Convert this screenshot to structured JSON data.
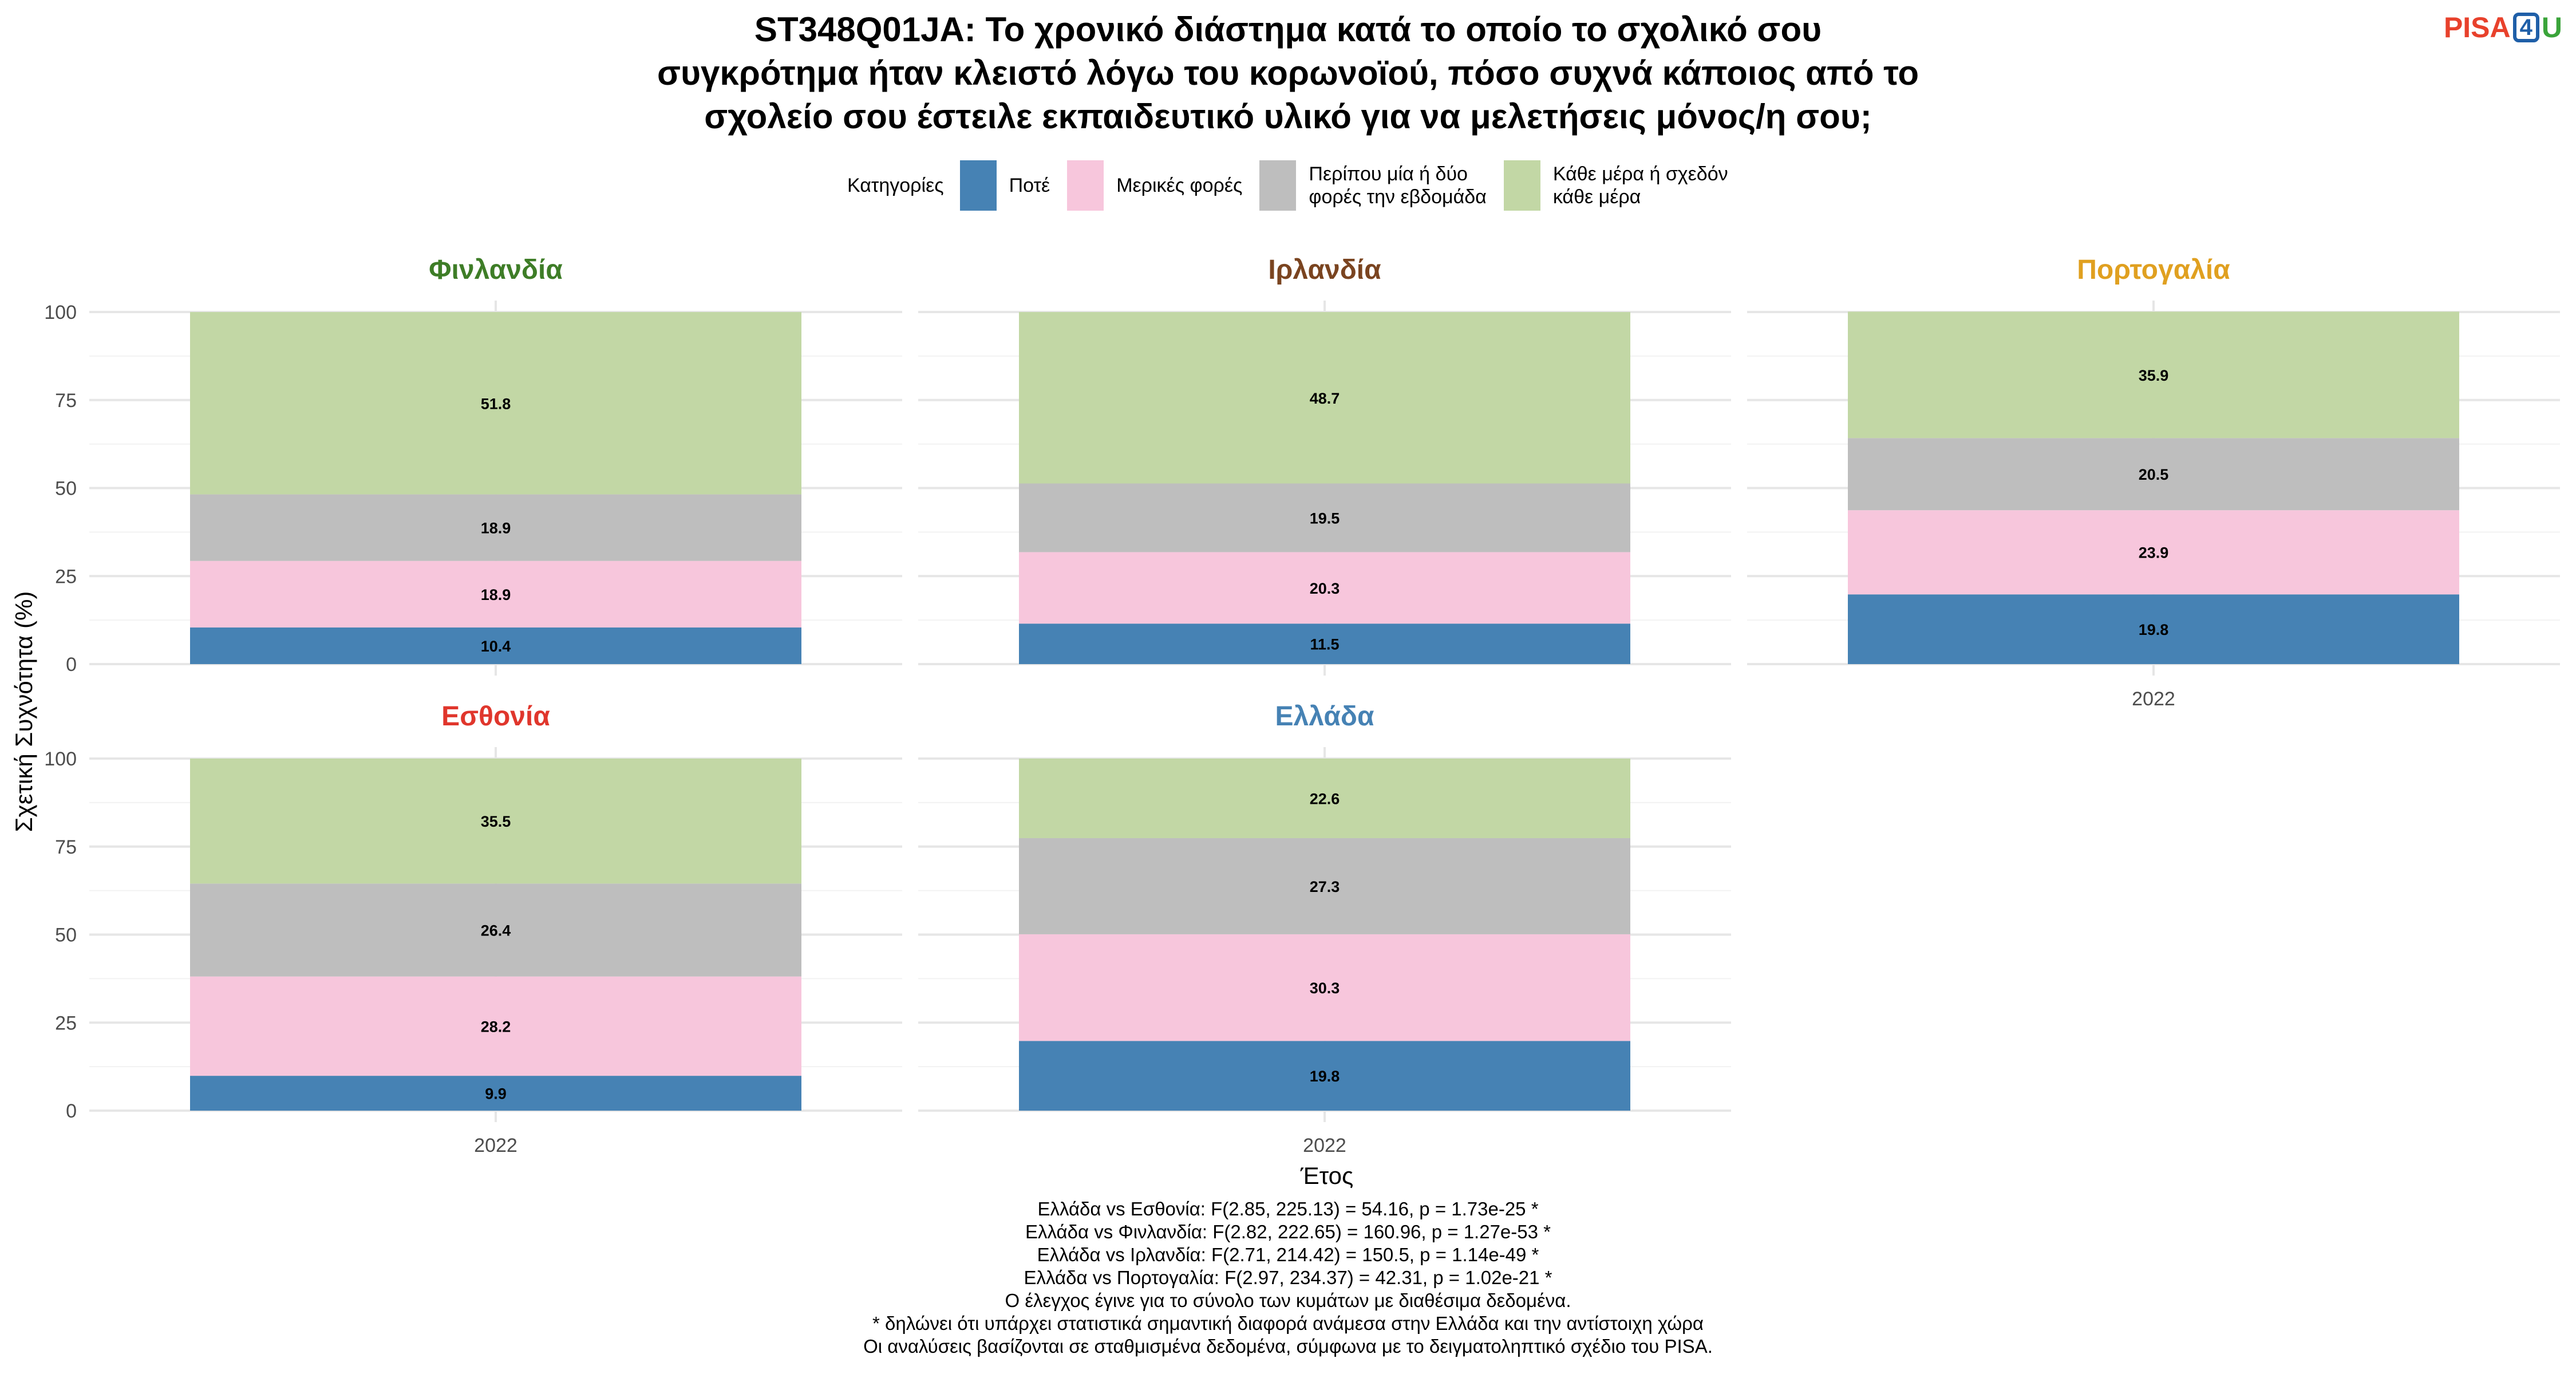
{
  "title_lines": [
    "ST348Q01JA: Το χρονικό διάστημα κατά το οποίο το σχολικό σου",
    "συγκρότημα ήταν κλειστό λόγω του κορωνοϊού, πόσο συχνά κάποιος από το",
    "σχολείο σου έστειλε εκπαιδευτικό υλικό για να μελετήσεις μόνος/η σου;"
  ],
  "logo": {
    "pisa": "PISA",
    "four": "4",
    "u": "U"
  },
  "legend": {
    "title": "Κατηγορίες",
    "items": [
      {
        "label": "Ποτέ",
        "color": "#4682b4"
      },
      {
        "label": "Μερικές φορές",
        "color": "#f7c6dc"
      },
      {
        "label": "Περίπου μία ή δύο\nφορές την εβδομάδα",
        "color": "#bebebe"
      },
      {
        "label": "Κάθε μέρα ή σχεδόν\nκάθε μέρα",
        "color": "#c2d7a5"
      }
    ]
  },
  "chart_data": {
    "type": "bar",
    "stacked": true,
    "xlabel": "Έτος",
    "ylabel": "Σχετική Συχνότητα (%)",
    "ylim": [
      0,
      100
    ],
    "yticks": [
      0,
      25,
      50,
      75,
      100
    ],
    "categories": [
      "2022"
    ],
    "series_names": [
      "Ποτέ",
      "Μερικές φορές",
      "Περίπου μία ή δύο φορές την εβδομάδα",
      "Κάθε μέρα ή σχεδόν κάθε μέρα"
    ],
    "panels": [
      {
        "title": "Φινλανδία",
        "title_color": "#3e7d27",
        "values": [
          10.4,
          18.9,
          18.9,
          51.8
        ]
      },
      {
        "title": "Ιρλανδία",
        "title_color": "#7a4420",
        "values": [
          11.5,
          20.3,
          19.5,
          48.7
        ]
      },
      {
        "title": "Πορτογαλία",
        "title_color": "#e0a020",
        "values": [
          19.8,
          23.9,
          20.5,
          35.9
        ]
      },
      {
        "title": "Εσθονία",
        "title_color": "#e0362c",
        "values": [
          9.9,
          28.2,
          26.4,
          35.5
        ]
      },
      {
        "title": "Ελλάδα",
        "title_color": "#4682b4",
        "values": [
          19.8,
          30.3,
          27.3,
          22.6
        ]
      }
    ]
  },
  "footnotes": [
    "Ελλάδα vs Εσθονία: F(2.85, 225.13) = 54.16, p = 1.73e-25 *",
    "Ελλάδα vs Φινλανδία: F(2.82, 222.65) = 160.96, p = 1.27e-53 *",
    "Ελλάδα vs Ιρλανδία: F(2.71, 214.42) = 150.5, p = 1.14e-49 *",
    "Ελλάδα vs Πορτογαλία: F(2.97, 234.37) = 42.31, p = 1.02e-21 *",
    "Ο έλεγχος έγινε για το σύνολο των κυμάτων με διαθέσιμα δεδομένα.",
    "* δηλώνει ότι υπάρχει στατιστικά σημαντική διαφορά ανάμεσα στην Ελλάδα και την αντίστοιχη χώρα",
    "Οι αναλύσεις βασίζονται σε σταθμισμένα δεδομένα, σύμφωνα με το δειγματοληπτικό σχέδιο του PISA."
  ]
}
